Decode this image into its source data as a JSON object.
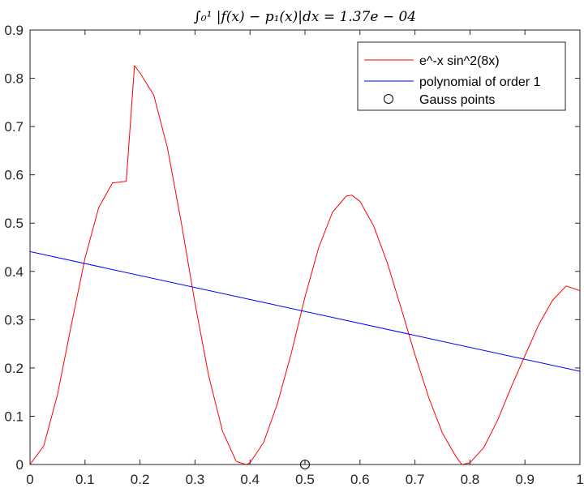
{
  "chart_data": {
    "type": "line",
    "title": "∫₀¹ |f(x) − p₁(x)|dx = 1.37e − 04",
    "xlim": [
      0,
      1
    ],
    "ylim": [
      0,
      0.9
    ],
    "xticks": [
      "0",
      "0.1",
      "0.2",
      "0.3",
      "0.4",
      "0.5",
      "0.6",
      "0.7",
      "0.8",
      "0.9",
      "1"
    ],
    "yticks": [
      "0",
      "0.1",
      "0.2",
      "0.3",
      "0.4",
      "0.5",
      "0.6",
      "0.7",
      "0.8",
      "0.9"
    ],
    "grid": false,
    "legend_position": "top-right",
    "series": [
      {
        "name": "e^-x sin^2(8x)",
        "color": "#ff0000",
        "x": [
          0,
          0.025,
          0.05,
          0.075,
          0.1,
          0.125,
          0.15,
          0.175,
          0.19,
          0.2,
          0.225,
          0.25,
          0.275,
          0.3,
          0.325,
          0.35,
          0.375,
          0.3927,
          0.4,
          0.425,
          0.45,
          0.475,
          0.5,
          0.525,
          0.55,
          0.575,
          0.585,
          0.6,
          0.625,
          0.65,
          0.675,
          0.7,
          0.725,
          0.75,
          0.775,
          0.7854,
          0.8,
          0.825,
          0.85,
          0.875,
          0.9,
          0.925,
          0.95,
          0.975,
          1
        ],
        "y": [
          0,
          0.0386,
          0.1449,
          0.2884,
          0.4274,
          0.5324,
          0.5833,
          0.5866,
          0.8262,
          0.811,
          0.7652,
          0.6552,
          0.5017,
          0.3342,
          0.1833,
          0.0691,
          0.0064,
          0,
          0.0032,
          0.0462,
          0.1266,
          0.2298,
          0.347,
          0.4495,
          0.5224,
          0.556,
          0.558,
          0.545,
          0.4938,
          0.4167,
          0.3233,
          0.2273,
          0.1389,
          0.0648,
          0.0155,
          0,
          0.0035,
          0.0349,
          0.091,
          0.1603,
          0.2254,
          0.2894,
          0.3398,
          0.3697,
          0.3602
        ]
      },
      {
        "name": "polynomial of order 1",
        "color": "#0000ff",
        "x": [
          0,
          1
        ],
        "y": [
          0.441,
          0.193
        ]
      },
      {
        "name": "Gauss points",
        "color": "#000000",
        "marker": "circle",
        "x": [
          0.5
        ],
        "y": [
          0
        ]
      }
    ]
  }
}
